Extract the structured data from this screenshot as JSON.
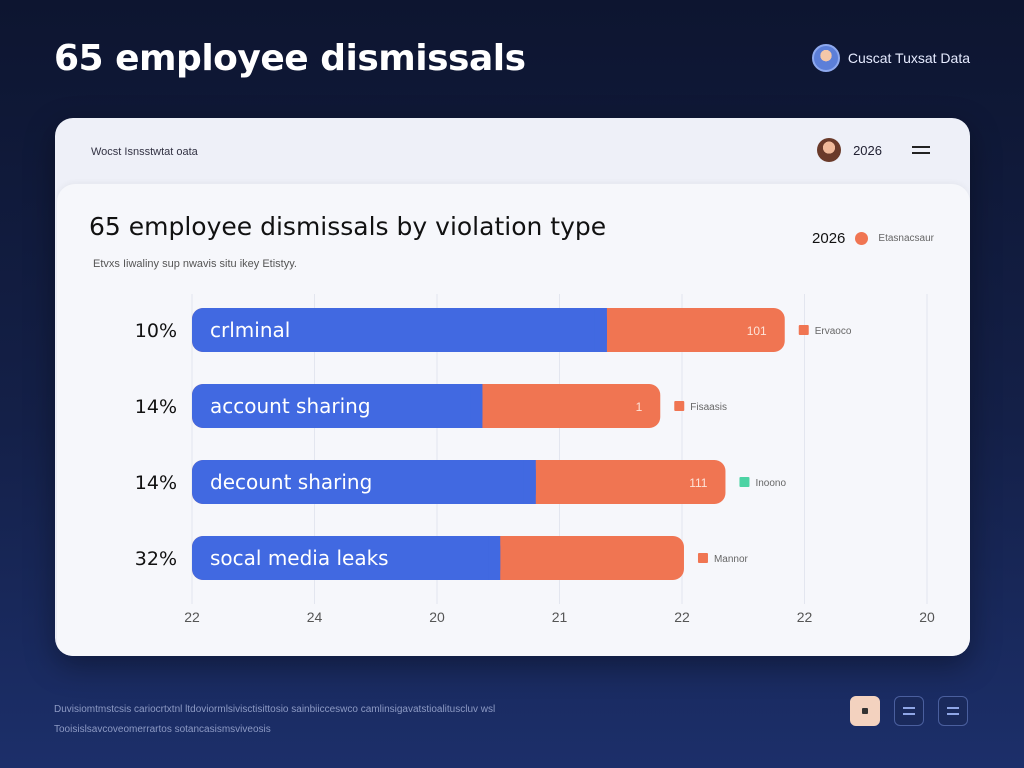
{
  "page": {
    "title": "65 employee  dismissals",
    "brand_text": "Cuscat Tuxsat Data"
  },
  "card": {
    "head_label": "Wocst Isnsstwtat oata",
    "head_year": "2026"
  },
  "chart_data": {
    "type": "bar",
    "orientation": "horizontal",
    "stacked": true,
    "title": "65 employee dismissals by violation type",
    "subtitle": "Etvxs Iiwaliny sup nwavis situ ikey Etistyy.",
    "legend": {
      "year": "2026",
      "label": "Etasnacsaur",
      "placement": "top-right"
    },
    "categories": [
      "crlminal",
      "account sharing",
      "deccount sharing",
      "social media leaks"
    ],
    "category_labels_shown": [
      "crlminal",
      "account sharing",
      "decount sharing",
      "socal media leaks"
    ],
    "percent_labels": [
      "10%",
      "14%",
      "14%",
      "32%"
    ],
    "series": [
      {
        "values": [
          70,
          49,
          58,
          52
        ],
        "color": "#4169e1"
      },
      {
        "values": [
          30,
          30,
          32,
          31
        ],
        "color": "#f07552"
      }
    ],
    "bar_value_labels": [
      "101",
      "1",
      "111",
      ""
    ],
    "side_labels": [
      {
        "text": "Ervaoco",
        "color": "#f07552"
      },
      {
        "text": "Fisaasis",
        "color": "#f07552"
      },
      {
        "text": "Inoono",
        "color": "#4cd3a4"
      },
      {
        "text": "Mannor",
        "color": "#f07552"
      }
    ],
    "x_tick_labels": [
      "22",
      "24",
      "20",
      "21",
      "22",
      "22",
      "20"
    ],
    "xlim": [
      0,
      124
    ],
    "grid": true
  },
  "footer": {
    "line1": "Duvisiomtmstcsis cariocrtxtnl ltdoviormlsivisctisittosio sainbiicceswco camlinsigavatstioalituscluv wsl",
    "line2": "Tooisislsavcoveomerrartos sotancasismsviveosis",
    "buttons": [
      "pause-icon",
      "slides-icon",
      "slides-icon"
    ]
  },
  "colors": {
    "primary": "#4169e1",
    "secondary": "#f07552",
    "accent": "#4cd3a4",
    "background": "#0d1530"
  }
}
